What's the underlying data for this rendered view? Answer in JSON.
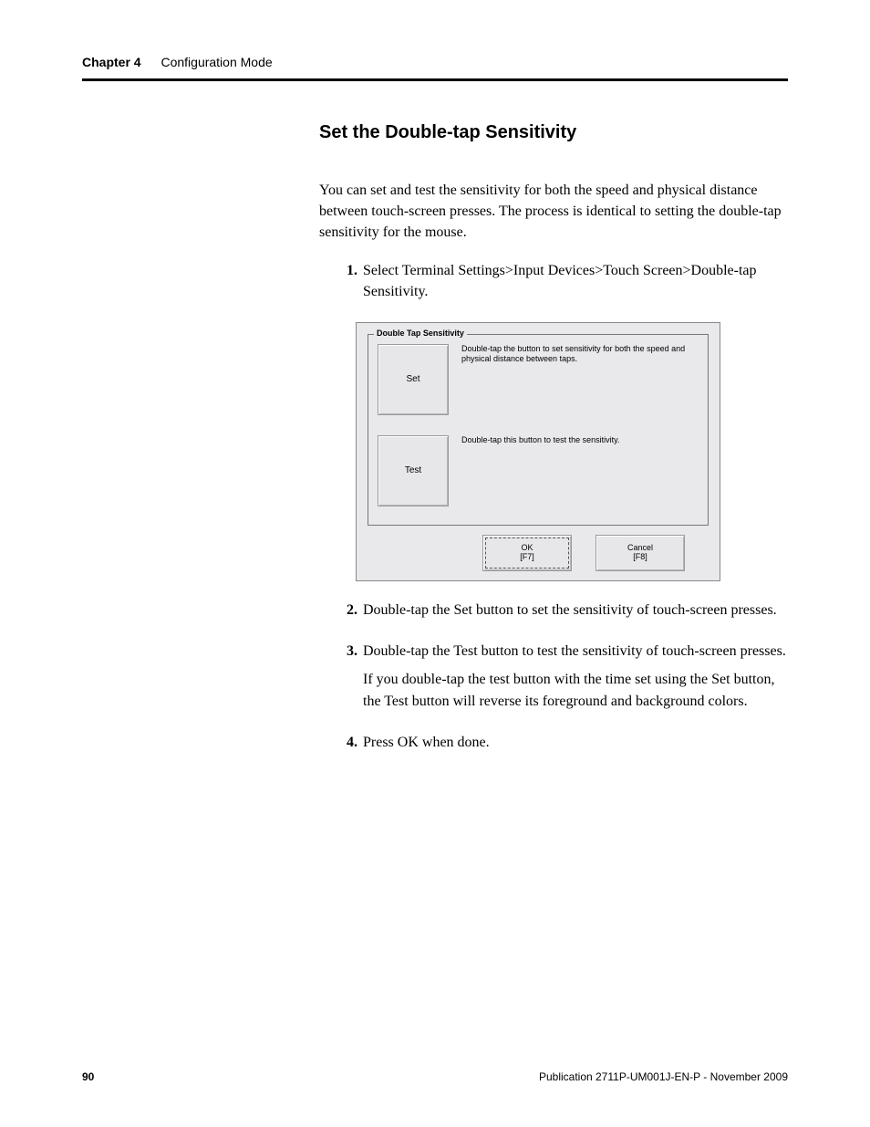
{
  "header": {
    "chapter": "Chapter 4",
    "section": "Configuration Mode"
  },
  "title": "Set the Double-tap Sensitivity",
  "intro": "You can set and test the sensitivity for both the speed and physical distance between touch-screen presses. The process is identical to setting the double-tap sensitivity for the mouse.",
  "steps": [
    {
      "num": "1.",
      "text": "Select Terminal Settings>Input Devices>Touch Screen>Double-tap Sensitivity."
    },
    {
      "num": "2.",
      "text": "Double-tap the Set button to set the sensitivity of touch-screen presses."
    },
    {
      "num": "3.",
      "text": "Double-tap the Test button to test the sensitivity of touch-screen presses.",
      "extra": "If you double-tap the test button with the time set using the Set button, the Test button will reverse its foreground and background colors."
    },
    {
      "num": "4.",
      "text": "Press OK when done."
    }
  ],
  "dialog": {
    "groupTitle": "Double Tap Sensitivity",
    "rows": [
      {
        "button": "Set",
        "desc": "Double-tap the button to set sensitivity for both the speed and physical distance between taps."
      },
      {
        "button": "Test",
        "desc": "Double-tap this button to test the sensitivity."
      }
    ],
    "ok": {
      "label": "OK",
      "key": "[F7]"
    },
    "cancel": {
      "label": "Cancel",
      "key": "[F8]"
    }
  },
  "footer": {
    "page": "90",
    "pub": "Publication 2711P-UM001J-EN-P - November 2009"
  }
}
